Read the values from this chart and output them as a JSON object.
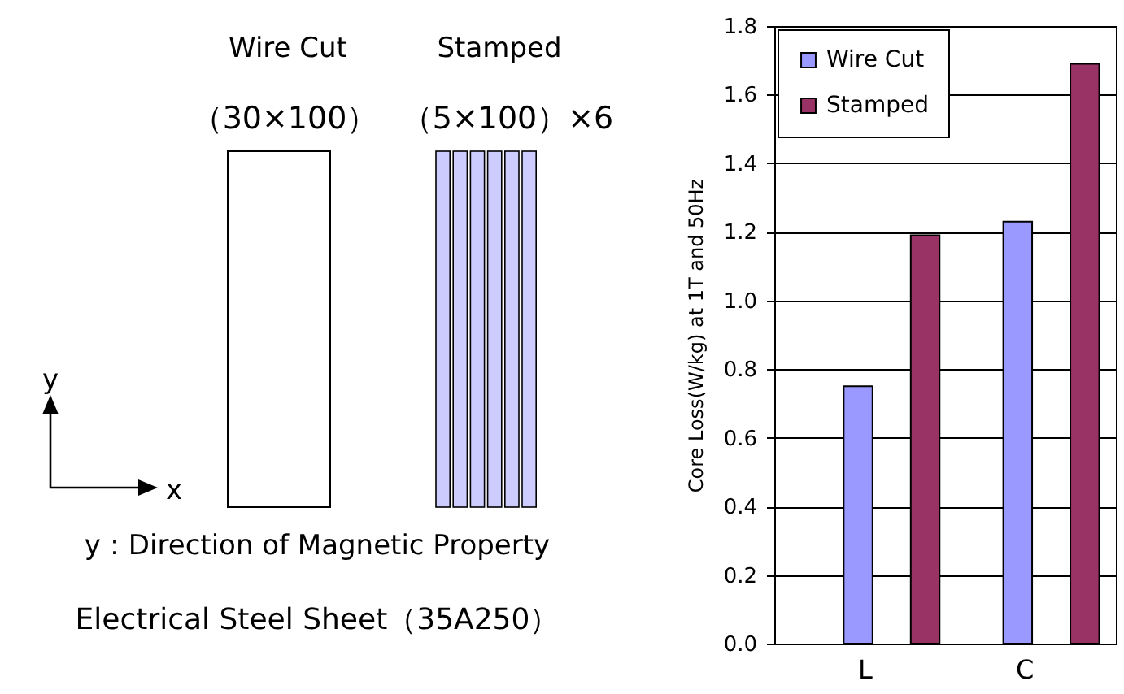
{
  "chart_data": {
    "type": "bar",
    "ylabel": "Core Loss(W/kg) at 1T and 50Hz",
    "categories": [
      "L",
      "C"
    ],
    "series": [
      {
        "name": "Wire Cut",
        "color": "#9999ff",
        "values": [
          0.75,
          1.23
        ]
      },
      {
        "name": "Stamped",
        "color": "#993366",
        "values": [
          1.19,
          1.69
        ]
      }
    ],
    "ylim": [
      0,
      1.8
    ],
    "yticks": [
      {
        "value": 0,
        "label": "0.0"
      },
      0.2,
      0.4,
      0.6,
      0.8,
      {
        "value": 1,
        "label": "1.0"
      },
      1.2,
      1.4,
      1.6,
      1.8
    ],
    "grid": "y",
    "legend": "top left",
    "annotations": [
      "Wire Cut",
      "Stamped",
      "（30×100）",
      "（5×100）×6",
      "y",
      "x",
      "y：Direction of Magnetic Property",
      "Electrical Steel Sheet（35A250）"
    ]
  }
}
